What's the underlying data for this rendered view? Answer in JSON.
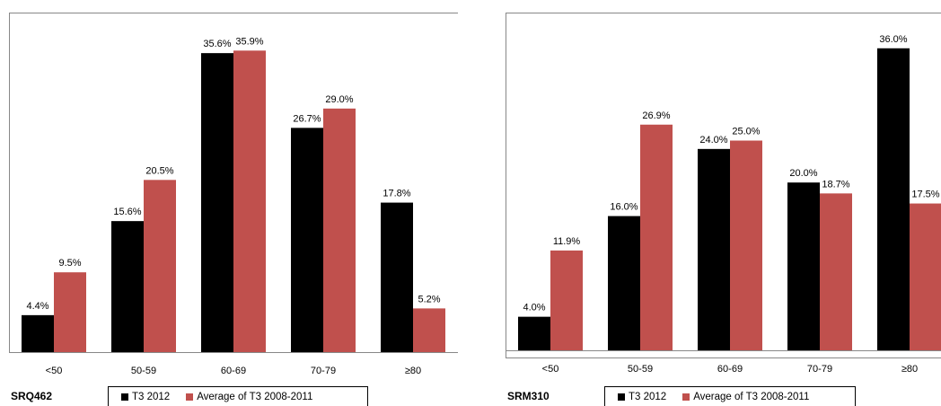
{
  "colors": {
    "series_a": "#000000",
    "series_b": "#C0504D"
  },
  "chart_data": [
    {
      "type": "bar",
      "label": "SRQ462",
      "categories": [
        "<50",
        "50-59",
        "60-69",
        "70-79",
        "≥80"
      ],
      "series": [
        {
          "name": "T3 2012",
          "values": [
            4.4,
            15.6,
            35.6,
            26.7,
            17.8
          ],
          "value_labels": [
            "4.4%",
            "15.6%",
            "35.6%",
            "26.7%",
            "17.8%"
          ]
        },
        {
          "name": "Average of T3 2008-2011",
          "values": [
            9.5,
            20.5,
            35.9,
            29.0,
            5.2
          ],
          "value_labels": [
            "9.5%",
            "20.5%",
            "35.9%",
            "29.0%",
            "5.2%"
          ]
        }
      ],
      "ylim": [
        0,
        40
      ],
      "grid": false,
      "legend_position": "bottom"
    },
    {
      "type": "bar",
      "label": "SRM310",
      "categories": [
        "<50",
        "50-59",
        "60-69",
        "70-79",
        "≥80"
      ],
      "series": [
        {
          "name": "T3 2012",
          "values": [
            4.0,
            16.0,
            24.0,
            20.0,
            36.0
          ],
          "value_labels": [
            "4.0%",
            "16.0%",
            "24.0%",
            "20.0%",
            "36.0%"
          ]
        },
        {
          "name": "Average of T3 2008-2011",
          "values": [
            11.9,
            26.9,
            25.0,
            18.7,
            17.5
          ],
          "value_labels": [
            "11.9%",
            "26.9%",
            "25.0%",
            "18.7%",
            "17.5%"
          ]
        }
      ],
      "ylim": [
        0,
        40
      ],
      "grid": false,
      "legend_position": "bottom"
    }
  ]
}
